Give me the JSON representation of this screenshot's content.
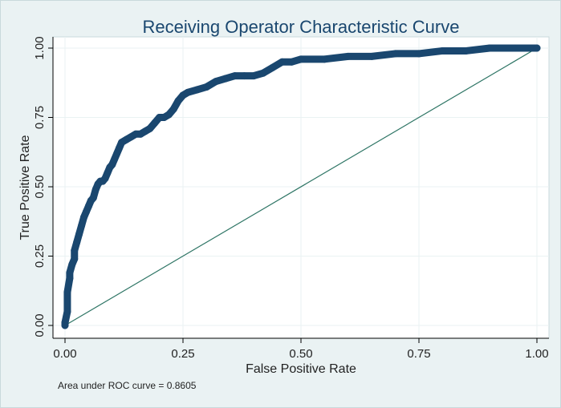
{
  "chart_data": {
    "type": "line",
    "title": "Receiving Operator Characteristic Curve",
    "xlabel": "False Positive Rate",
    "ylabel": "True Positive Rate",
    "xlim": [
      0,
      1
    ],
    "ylim": [
      0,
      1
    ],
    "xticks": [
      "0.00",
      "0.25",
      "0.50",
      "0.75",
      "1.00"
    ],
    "yticks": [
      "0.00",
      "0.25",
      "0.50",
      "0.75",
      "1.00"
    ],
    "note": "Area under ROC curve = 0.8605",
    "grid": true,
    "series": [
      {
        "values_x": [
          0,
          0,
          0.005,
          0.005,
          0.01,
          0.01,
          0.015,
          0.02,
          0.02,
          0.025,
          0.03,
          0.035,
          0.04,
          0.045,
          0.05,
          0.055,
          0.06,
          0.065,
          0.07,
          0.075,
          0.08,
          0.085,
          0.09,
          0.095,
          0.1,
          0.105,
          0.11,
          0.115,
          0.12,
          0.13,
          0.14,
          0.15,
          0.16,
          0.17,
          0.18,
          0.19,
          0.2,
          0.21,
          0.22,
          0.23,
          0.24,
          0.25,
          0.26,
          0.28,
          0.3,
          0.32,
          0.34,
          0.36,
          0.38,
          0.4,
          0.42,
          0.44,
          0.46,
          0.48,
          0.5,
          0.55,
          0.6,
          0.65,
          0.7,
          0.75,
          0.8,
          0.85,
          0.9,
          0.95,
          1.0
        ],
        "values_y": [
          0,
          0.01,
          0.05,
          0.12,
          0.17,
          0.19,
          0.22,
          0.24,
          0.27,
          0.3,
          0.33,
          0.36,
          0.39,
          0.41,
          0.43,
          0.45,
          0.46,
          0.49,
          0.51,
          0.52,
          0.52,
          0.53,
          0.55,
          0.57,
          0.58,
          0.6,
          0.62,
          0.64,
          0.66,
          0.67,
          0.68,
          0.69,
          0.69,
          0.7,
          0.71,
          0.73,
          0.75,
          0.75,
          0.76,
          0.78,
          0.81,
          0.83,
          0.84,
          0.85,
          0.86,
          0.88,
          0.89,
          0.9,
          0.9,
          0.9,
          0.91,
          0.93,
          0.95,
          0.95,
          0.96,
          0.96,
          0.97,
          0.97,
          0.98,
          0.98,
          0.99,
          0.99,
          1.0,
          1.0,
          1.0
        ],
        "color": "#1a476f"
      },
      {
        "values_x": [
          0,
          1
        ],
        "values_y": [
          0,
          1
        ],
        "color": "#2e7565"
      }
    ]
  }
}
